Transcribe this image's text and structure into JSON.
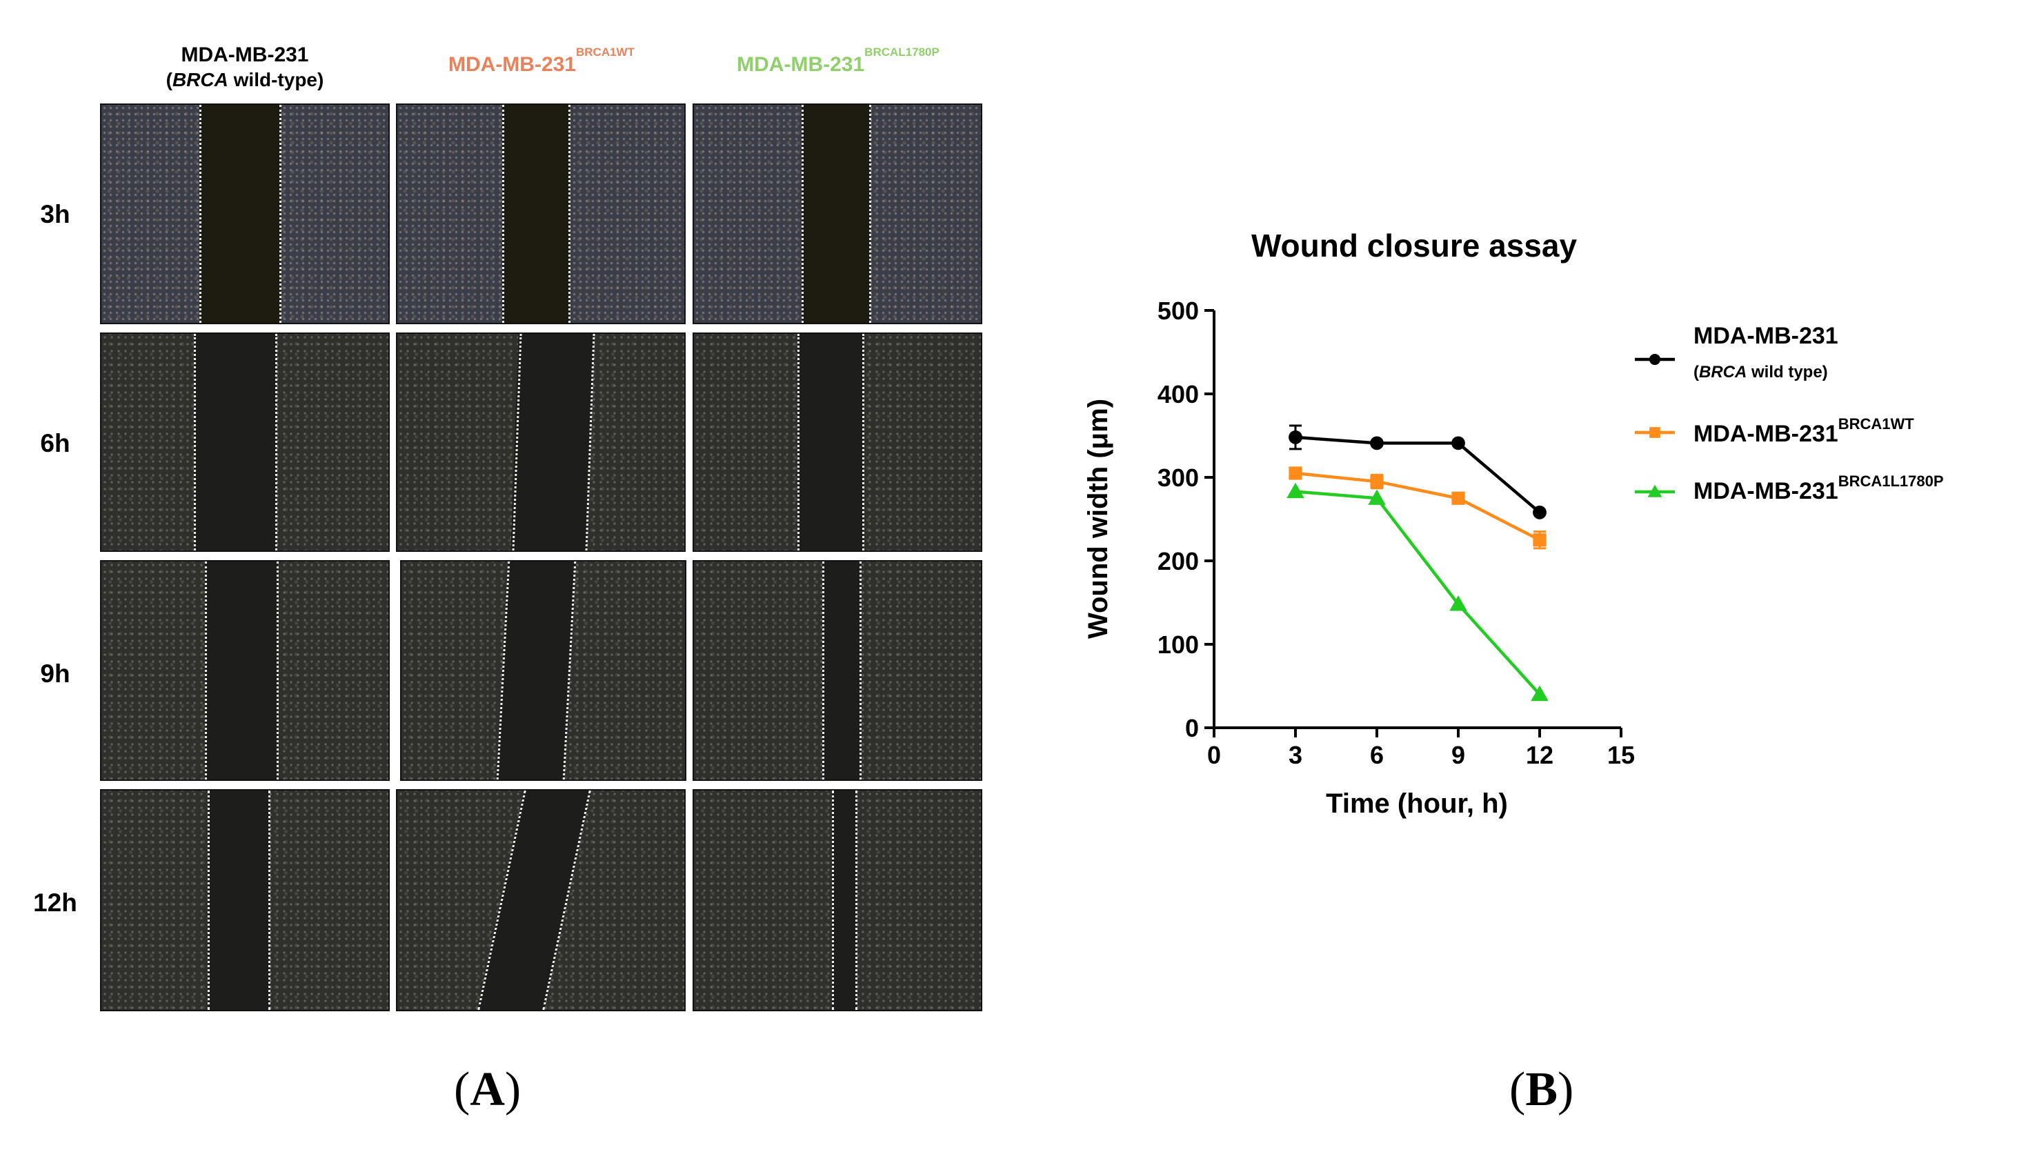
{
  "panel_a": {
    "letter": "A",
    "columns": [
      {
        "name": "MDA-MB-231",
        "sub_italic": "BRCA",
        "sub_rest": " wild-type)",
        "sub_open": "(",
        "color": "#1a1a1a"
      },
      {
        "name": "MDA-MB-231",
        "sup": "BRCA1WT",
        "color": "#e8825a"
      },
      {
        "name": "MDA-MB-231",
        "sup": "BRCAL1780P",
        "color": "#8fd06a"
      }
    ],
    "rows": [
      "3h",
      "6h",
      "9h",
      "12h"
    ]
  },
  "panel_b": {
    "letter": "B"
  },
  "chart_data": {
    "type": "line",
    "title": "Wound closure assay",
    "xlabel": "Time (hour, h)",
    "ylabel": "Wound width (μm)",
    "x": [
      3,
      6,
      9,
      12
    ],
    "xlim": [
      0,
      15
    ],
    "ylim": [
      0,
      500
    ],
    "xticks": [
      0,
      3,
      6,
      9,
      12,
      15
    ],
    "yticks": [
      0,
      100,
      200,
      300,
      400,
      500
    ],
    "series": [
      {
        "name": "MDA-MB-231",
        "name_sup": "",
        "subtitle_open": "(",
        "subtitle_italic": "BRCA",
        "subtitle_rest": " wild type)",
        "marker": "circle",
        "color": "#000000",
        "values": [
          348,
          341,
          341,
          258
        ],
        "errors": [
          14,
          3,
          3,
          3
        ]
      },
      {
        "name": "MDA-MB-231",
        "name_sup": "BRCA1WT",
        "marker": "square",
        "color": "#ff8c1a",
        "values": [
          305,
          295,
          275,
          225
        ],
        "errors": [
          4,
          8,
          4,
          10
        ]
      },
      {
        "name": "MDA-MB-231",
        "name_sup": "BRCA1L1780P",
        "marker": "triangle",
        "color": "#22cc22",
        "values": [
          283,
          275,
          148,
          40
        ],
        "errors": [
          2,
          2,
          2,
          2
        ]
      }
    ],
    "legend_position": "right",
    "grid": false
  }
}
